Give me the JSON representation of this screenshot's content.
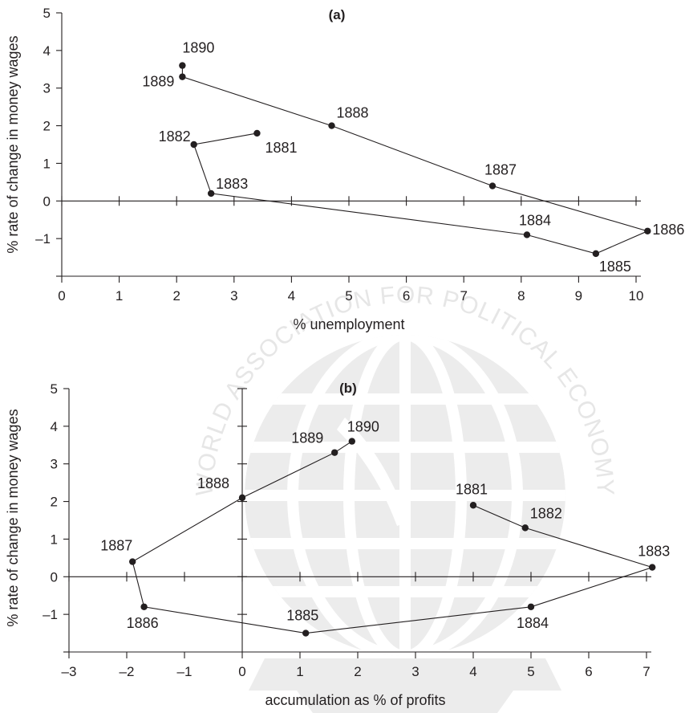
{
  "colors": {
    "ink": "#231f20",
    "watermark": "#e4e4e4"
  },
  "watermark": {
    "text": "WORLD ASSOCIATION FOR POLITICAL ECONOMY"
  },
  "chart_data": [
    {
      "type": "scatter",
      "connected": true,
      "title": "(a)",
      "xlabel": "% unemployment",
      "ylabel": "% rate of change in money wages",
      "xlim": [
        0,
        10
      ],
      "ylim": [
        -2,
        5
      ],
      "xticks": [
        "0",
        "1",
        "2",
        "3",
        "4",
        "5",
        "6",
        "7",
        "8",
        "9",
        "10"
      ],
      "yticks": [
        "–1",
        "0",
        "1",
        "2",
        "3",
        "4",
        "5"
      ],
      "points": [
        {
          "label": "1881",
          "x": 3.4,
          "y": 1.8
        },
        {
          "label": "1882",
          "x": 2.3,
          "y": 1.5
        },
        {
          "label": "1883",
          "x": 2.6,
          "y": 0.2
        },
        {
          "label": "1884",
          "x": 8.1,
          "y": -0.9
        },
        {
          "label": "1885",
          "x": 9.3,
          "y": -1.4
        },
        {
          "label": "1886",
          "x": 10.2,
          "y": -0.8
        },
        {
          "label": "1887",
          "x": 7.5,
          "y": 0.4
        },
        {
          "label": "1888",
          "x": 4.7,
          "y": 2.0
        },
        {
          "label": "1889",
          "x": 2.1,
          "y": 3.3
        },
        {
          "label": "1890",
          "x": 2.1,
          "y": 3.6
        }
      ]
    },
    {
      "type": "scatter",
      "connected": true,
      "title": "(b)",
      "xlabel": "accumulation as % of profits",
      "ylabel": "% rate of change in money wages",
      "xlim": [
        -3,
        7
      ],
      "ylim": [
        -2,
        5
      ],
      "xticks": [
        "–3",
        "–2",
        "–1",
        "0",
        "1",
        "2",
        "3",
        "4",
        "5",
        "6",
        "7"
      ],
      "yticks": [
        "–1",
        "0",
        "1",
        "2",
        "3",
        "4",
        "5"
      ],
      "points": [
        {
          "label": "1881",
          "x": 4.0,
          "y": 1.9
        },
        {
          "label": "1882",
          "x": 4.9,
          "y": 1.3
        },
        {
          "label": "1883",
          "x": 7.1,
          "y": 0.25
        },
        {
          "label": "1884",
          "x": 5.0,
          "y": -0.8
        },
        {
          "label": "1885",
          "x": 1.1,
          "y": -1.5
        },
        {
          "label": "1886",
          "x": -1.7,
          "y": -0.8
        },
        {
          "label": "1887",
          "x": -1.9,
          "y": 0.4
        },
        {
          "label": "1888",
          "x": 0.0,
          "y": 2.1
        },
        {
          "label": "1889",
          "x": 1.6,
          "y": 3.3
        },
        {
          "label": "1890",
          "x": 1.9,
          "y": 3.6
        }
      ]
    }
  ]
}
